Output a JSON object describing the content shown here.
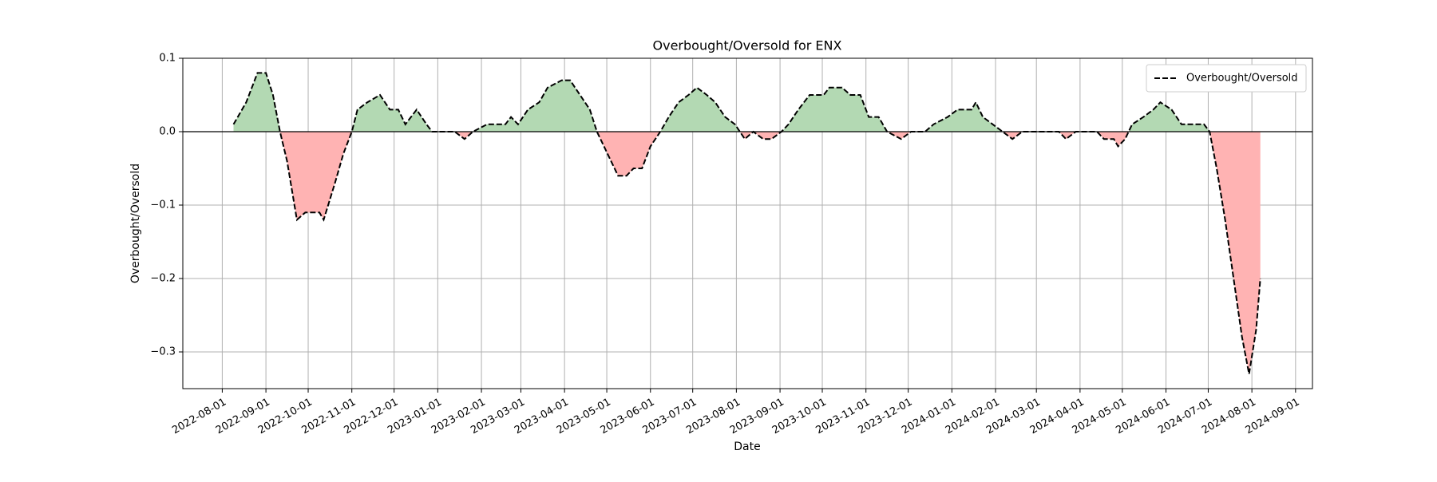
{
  "chart_data": {
    "type": "line",
    "title": "Overbought/Oversold for ENX",
    "xlabel": "Date",
    "ylabel": "Overbought/Oversold",
    "x": [
      "2022-08-09",
      "2022-08-18",
      "2022-08-26",
      "2022-09-01",
      "2022-09-06",
      "2022-09-11",
      "2022-09-16",
      "2022-09-23",
      "2022-09-29",
      "2022-10-09",
      "2022-10-12",
      "2022-10-20",
      "2022-10-26",
      "2022-11-01",
      "2022-11-05",
      "2022-11-12",
      "2022-11-21",
      "2022-11-28",
      "2022-12-04",
      "2022-12-09",
      "2022-12-17",
      "2022-12-24",
      "2022-12-28",
      "2023-01-13",
      "2023-01-20",
      "2023-01-26",
      "2023-02-05",
      "2023-02-18",
      "2023-02-22",
      "2023-02-27",
      "2023-03-06",
      "2023-03-14",
      "2023-03-20",
      "2023-03-30",
      "2023-04-05",
      "2023-04-12",
      "2023-04-19",
      "2023-04-24",
      "2023-04-29",
      "2023-05-04",
      "2023-05-09",
      "2023-05-15",
      "2023-05-20",
      "2023-05-26",
      "2023-06-01",
      "2023-06-08",
      "2023-06-14",
      "2023-06-21",
      "2023-06-28",
      "2023-07-04",
      "2023-07-11",
      "2023-07-17",
      "2023-07-24",
      "2023-07-31",
      "2023-08-07",
      "2023-08-13",
      "2023-08-20",
      "2023-08-26",
      "2023-09-02",
      "2023-09-07",
      "2023-09-14",
      "2023-09-22",
      "2023-10-02",
      "2023-10-06",
      "2023-10-15",
      "2023-10-21",
      "2023-10-28",
      "2023-11-03",
      "2023-11-10",
      "2023-11-16",
      "2023-11-26",
      "2023-12-03",
      "2023-12-13",
      "2023-12-19",
      "2023-12-29",
      "2024-01-05",
      "2024-01-15",
      "2024-01-18",
      "2024-01-23",
      "2024-01-30",
      "2024-02-06",
      "2024-02-13",
      "2024-02-20",
      "2024-03-04",
      "2024-03-17",
      "2024-03-22",
      "2024-03-29",
      "2024-04-13",
      "2024-04-18",
      "2024-04-25",
      "2024-04-28",
      "2024-05-03",
      "2024-05-08",
      "2024-05-16",
      "2024-05-23",
      "2024-05-28",
      "2024-06-05",
      "2024-06-12",
      "2024-06-18",
      "2024-06-28",
      "2024-07-02",
      "2024-07-07",
      "2024-07-13",
      "2024-07-19",
      "2024-07-25",
      "2024-07-30",
      "2024-08-04",
      "2024-08-07"
    ],
    "series": [
      {
        "name": "Overbought/Oversold",
        "color": "#000000",
        "positive_fill": "#b3d9b3",
        "negative_fill": "#ffb3b3",
        "values": [
          0.01,
          0.04,
          0.08,
          0.08,
          0.05,
          0.0,
          -0.04,
          -0.12,
          -0.11,
          -0.11,
          -0.12,
          -0.07,
          -0.03,
          0.0,
          0.03,
          0.04,
          0.05,
          0.03,
          0.03,
          0.01,
          0.03,
          0.01,
          0.0,
          0.0,
          -0.01,
          0.0,
          0.01,
          0.01,
          0.02,
          0.01,
          0.03,
          0.04,
          0.06,
          0.07,
          0.07,
          0.05,
          0.03,
          0.0,
          -0.02,
          -0.04,
          -0.06,
          -0.06,
          -0.05,
          -0.05,
          -0.02,
          0.0,
          0.02,
          0.04,
          0.05,
          0.06,
          0.05,
          0.04,
          0.02,
          0.01,
          -0.01,
          0.0,
          -0.01,
          -0.01,
          0.0,
          0.01,
          0.03,
          0.05,
          0.05,
          0.06,
          0.06,
          0.05,
          0.05,
          0.02,
          0.02,
          0.0,
          -0.01,
          0.0,
          0.0,
          0.01,
          0.02,
          0.03,
          0.03,
          0.04,
          0.02,
          0.01,
          0.0,
          -0.01,
          0.0,
          0.0,
          0.0,
          -0.01,
          0.0,
          0.0,
          -0.01,
          -0.01,
          -0.02,
          -0.01,
          0.01,
          0.02,
          0.03,
          0.04,
          0.03,
          0.01,
          0.01,
          0.01,
          0.0,
          -0.05,
          -0.12,
          -0.2,
          -0.28,
          -0.33,
          -0.27,
          -0.2
        ]
      }
    ],
    "xlim": [
      "2022-07-04",
      "2024-09-13"
    ],
    "xticks": [
      "2022-08-01",
      "2022-09-01",
      "2022-10-01",
      "2022-11-01",
      "2022-12-01",
      "2023-01-01",
      "2023-02-01",
      "2023-03-01",
      "2023-04-01",
      "2023-05-01",
      "2023-06-01",
      "2023-07-01",
      "2023-08-01",
      "2023-09-01",
      "2023-10-01",
      "2023-11-01",
      "2023-12-01",
      "2024-01-01",
      "2024-02-01",
      "2024-03-01",
      "2024-04-01",
      "2024-05-01",
      "2024-06-01",
      "2024-07-01",
      "2024-08-01",
      "2024-09-01"
    ],
    "ylim": [
      -0.35,
      0.1
    ],
    "yticks": [
      {
        "value": -0.3,
        "label": "−0.3"
      },
      {
        "value": -0.2,
        "label": "−0.2"
      },
      {
        "value": -0.1,
        "label": "−0.1"
      },
      {
        "value": 0,
        "label": "0.0"
      },
      0.1
    ],
    "axhline": 0,
    "grid": true,
    "legend": "upper right"
  }
}
